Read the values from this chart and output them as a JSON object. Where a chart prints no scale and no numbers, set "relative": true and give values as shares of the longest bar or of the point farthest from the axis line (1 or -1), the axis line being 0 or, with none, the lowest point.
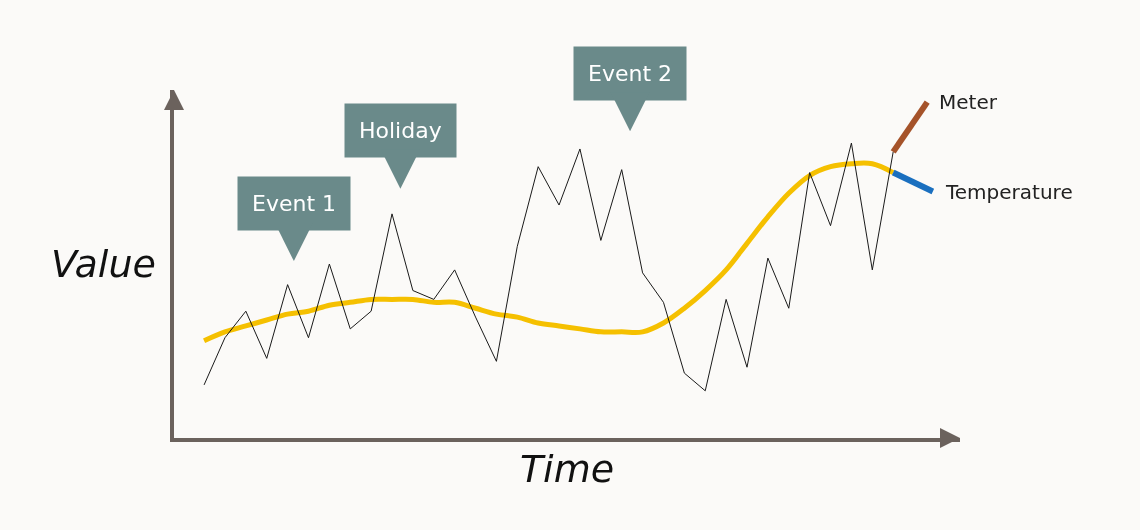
{
  "chart_data": {
    "type": "line",
    "relative": true,
    "xlabel": "Time",
    "ylabel": "Value",
    "categories": [
      null,
      null,
      null,
      null,
      null,
      null,
      null,
      null,
      null,
      null,
      null,
      null,
      null,
      null,
      null,
      null,
      null,
      null,
      null,
      null,
      null,
      null,
      null,
      null,
      null,
      null,
      null,
      null,
      null,
      null,
      null,
      null,
      null,
      null
    ],
    "series": [
      {
        "name": "Meter",
        "color": "#1a1a1a",
        "values": [
          0.18,
          0.34,
          0.43,
          0.27,
          0.52,
          0.34,
          0.59,
          0.37,
          0.43,
          0.76,
          0.5,
          0.47,
          0.57,
          0.41,
          0.26,
          0.65,
          0.92,
          0.79,
          0.98,
          0.67,
          0.91,
          0.56,
          0.46,
          0.22,
          0.16,
          0.47,
          0.24,
          0.61,
          0.44,
          0.9,
          0.72,
          1.0,
          0.57,
          0.97
        ]
      },
      {
        "name": "Temperature",
        "color": "#f5c000",
        "values": [
          0.33,
          0.36,
          0.38,
          0.4,
          0.42,
          0.43,
          0.45,
          0.46,
          0.47,
          0.47,
          0.47,
          0.46,
          0.46,
          0.44,
          0.42,
          0.41,
          0.39,
          0.38,
          0.37,
          0.36,
          0.36,
          0.36,
          0.39,
          0.44,
          0.5,
          0.57,
          0.66,
          0.75,
          0.83,
          0.89,
          0.92,
          0.93,
          0.93,
          0.9
        ]
      }
    ],
    "annotations": [
      "Event 1",
      "Holiday",
      "Event 2"
    ],
    "legend": "right",
    "tick_labels": false
  }
}
